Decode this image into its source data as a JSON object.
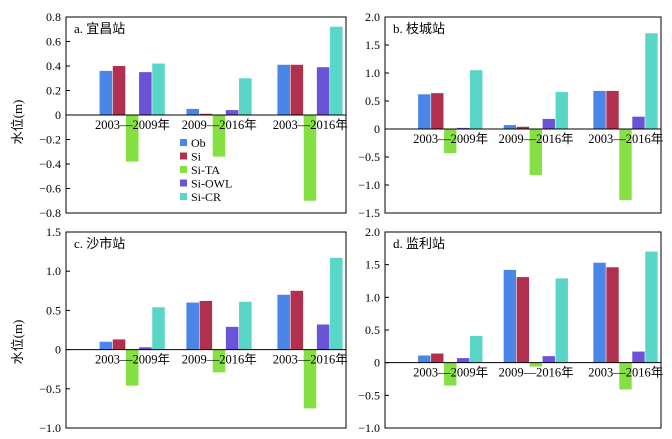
{
  "legend": [
    {
      "label": "Ob",
      "color": "#4a86e8"
    },
    {
      "label": "Si",
      "color": "#b0304e"
    },
    {
      "label": "Si-TA",
      "color": "#86e043"
    },
    {
      "label": "Si-OWL",
      "color": "#6b53d8"
    },
    {
      "label": "Si-CR",
      "color": "#5ad6c8"
    }
  ],
  "chart_data": [
    {
      "type": "bar",
      "title": "a. 宜昌站",
      "ylabel": "水位(m)",
      "categories": [
        "2003—2009年",
        "2009—2016年",
        "2003—2016年"
      ],
      "ylim": [
        -0.8,
        0.8
      ],
      "yticks": [
        -0.8,
        -0.6,
        -0.4,
        -0.2,
        0,
        0.2,
        0.4,
        0.6,
        0.8
      ],
      "series": [
        {
          "name": "Ob",
          "values": [
            0.36,
            0.05,
            0.41
          ]
        },
        {
          "name": "Si",
          "values": [
            0.4,
            0.01,
            0.41
          ]
        },
        {
          "name": "Si-TA",
          "values": [
            -0.38,
            -0.34,
            -0.7
          ]
        },
        {
          "name": "Si-OWL",
          "values": [
            0.35,
            0.04,
            0.39
          ]
        },
        {
          "name": "Si-CR",
          "values": [
            0.42,
            0.3,
            0.72
          ]
        }
      ]
    },
    {
      "type": "bar",
      "title": "b. 枝城站",
      "ylabel": "",
      "categories": [
        "2003—2009年",
        "2009—2016年",
        "2003—2016年"
      ],
      "ylim": [
        -1.5,
        2.0
      ],
      "yticks": [
        -1.5,
        -1.0,
        -0.5,
        0,
        0.5,
        1.0,
        1.5,
        2.0
      ],
      "series": [
        {
          "name": "Ob",
          "values": [
            0.62,
            0.07,
            0.68
          ]
        },
        {
          "name": "Si",
          "values": [
            0.64,
            0.04,
            0.68
          ]
        },
        {
          "name": "Si-TA",
          "values": [
            -0.43,
            -0.82,
            -1.27
          ]
        },
        {
          "name": "Si-OWL",
          "values": [
            0.02,
            0.18,
            0.22
          ]
        },
        {
          "name": "Si-CR",
          "values": [
            1.05,
            0.66,
            1.71
          ]
        }
      ]
    },
    {
      "type": "bar",
      "title": "c. 沙市站",
      "ylabel": "水位(m)",
      "categories": [
        "2003—2009年",
        "2009—2016年",
        "2003—2016年"
      ],
      "ylim": [
        -1.0,
        1.5
      ],
      "yticks": [
        -1.0,
        -0.5,
        0,
        0.5,
        1.0,
        1.5
      ],
      "series": [
        {
          "name": "Ob",
          "values": [
            0.1,
            0.6,
            0.7
          ]
        },
        {
          "name": "Si",
          "values": [
            0.13,
            0.62,
            0.75
          ]
        },
        {
          "name": "Si-TA",
          "values": [
            -0.46,
            -0.29,
            -0.75
          ]
        },
        {
          "name": "Si-OWL",
          "values": [
            0.03,
            0.29,
            0.32
          ]
        },
        {
          "name": "Si-CR",
          "values": [
            0.54,
            0.61,
            1.17
          ]
        }
      ]
    },
    {
      "type": "bar",
      "title": "d. 监利站",
      "ylabel": "",
      "categories": [
        "2003—2009年",
        "2009—2016年",
        "2003—2016年"
      ],
      "ylim": [
        -1.0,
        2.0
      ],
      "yticks": [
        -1.0,
        -0.5,
        0,
        0.5,
        1.0,
        1.5,
        2.0
      ],
      "series": [
        {
          "name": "Ob",
          "values": [
            0.11,
            1.42,
            1.53
          ]
        },
        {
          "name": "Si",
          "values": [
            0.14,
            1.31,
            1.46
          ]
        },
        {
          "name": "Si-TA",
          "values": [
            -0.35,
            -0.06,
            -0.41
          ]
        },
        {
          "name": "Si-OWL",
          "values": [
            0.07,
            0.1,
            0.17
          ]
        },
        {
          "name": "Si-CR",
          "values": [
            0.41,
            1.29,
            1.7
          ]
        }
      ]
    }
  ]
}
